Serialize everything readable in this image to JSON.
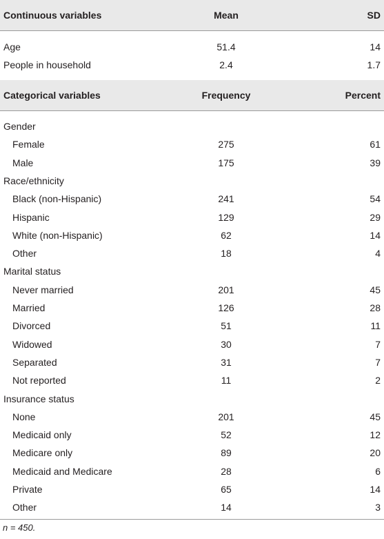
{
  "table": {
    "sections": [
      {
        "header": [
          "Continuous variables",
          "Mean",
          "SD"
        ],
        "rows": [
          [
            "Age",
            51.4,
            14
          ],
          [
            "People in household",
            2.4,
            1.7
          ]
        ]
      },
      {
        "header": [
          "Categorical variables",
          "Frequency",
          "Percent"
        ],
        "groups": [
          {
            "label": "Gender",
            "rows": [
              [
                "Female",
                275,
                61
              ],
              [
                "Male",
                175,
                39
              ]
            ]
          },
          {
            "label": "Race/ethnicity",
            "rows": [
              [
                "Black (non-Hispanic)",
                241,
                54
              ],
              [
                "Hispanic",
                129,
                29
              ],
              [
                "White (non-Hispanic)",
                62,
                14
              ],
              [
                "Other",
                18,
                4
              ]
            ]
          },
          {
            "label": "Marital status",
            "rows": [
              [
                "Never married",
                201,
                45
              ],
              [
                "Married",
                126,
                28
              ],
              [
                "Divorced",
                51,
                11
              ],
              [
                "Widowed",
                30,
                7
              ],
              [
                "Separated",
                31,
                7
              ],
              [
                "Not reported",
                11,
                2
              ]
            ]
          },
          {
            "label": "Insurance status",
            "rows": [
              [
                "None",
                201,
                45
              ],
              [
                "Medicaid only",
                52,
                12
              ],
              [
                "Medicare only",
                89,
                20
              ],
              [
                "Medicaid and Medicare",
                28,
                6
              ],
              [
                "Private",
                65,
                14
              ],
              [
                "Other",
                14,
                3
              ]
            ]
          }
        ]
      }
    ],
    "footnote": "n = 450."
  }
}
